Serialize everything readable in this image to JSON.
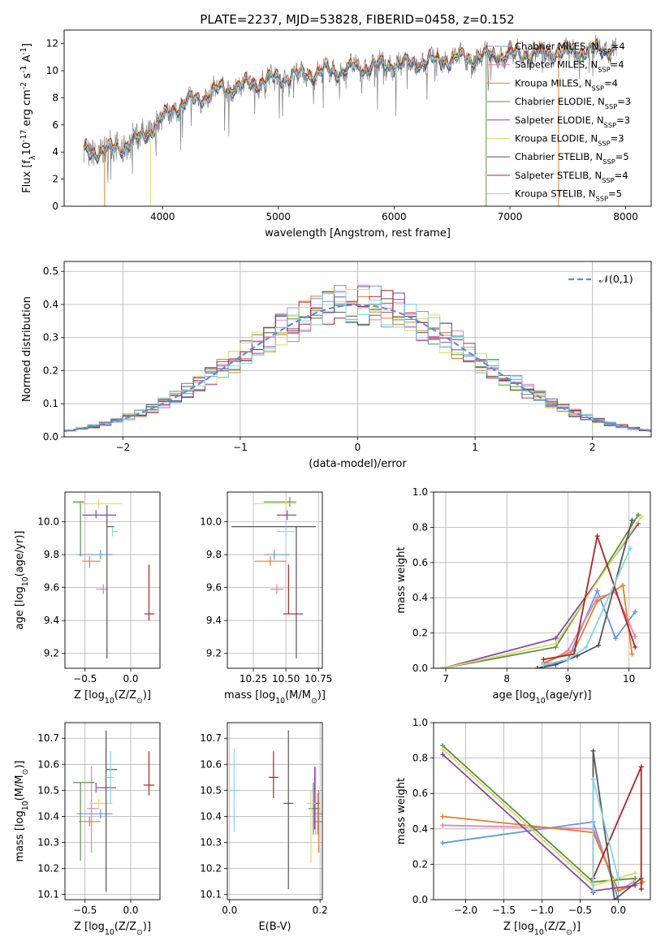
{
  "figure_title": "PLATE=2237, MJD=53828, FIBERID=0458, z=0.152",
  "series_legend": [
    {
      "label": "Chabrier MILES, N$_{SSP}$=4",
      "color": "#6495ed"
    },
    {
      "label": "Salpeter MILES, N$_{SSP}$=4",
      "color": "#e77fb3"
    },
    {
      "label": "Kroupa MILES, N$_{SSP}$=4",
      "color": "#e67e22"
    },
    {
      "label": "Chabrier ELODIE, N$_{SSP}$=3",
      "color": "#5b8f4a"
    },
    {
      "label": "Salpeter ELODIE, N$_{SSP}$=3",
      "color": "#8e44ad"
    },
    {
      "label": "Kroupa ELODIE, N$_{SSP}$=3",
      "color": "#d4e15a"
    },
    {
      "label": "Chabrier STELIB, N$_{SSP}$=5",
      "color": "#555555"
    },
    {
      "label": "Salpeter STELIB, N$_{SSP}$=4",
      "color": "#b22222"
    },
    {
      "label": "Kroupa STELIB, N$_{SSP}$=5",
      "color": "#7fd8e8"
    }
  ],
  "chart_data": [
    {
      "id": "spectrum",
      "type": "line",
      "title": "",
      "xlabel": "wavelength [Angstrom, rest frame]",
      "ylabel": "Flux [f$_\\lambda$10$^{-17}$ erg cm$^{-2}$ s$^{-1}$ A$^{-1}$]",
      "xlim": [
        3150,
        8220
      ],
      "ylim": [
        0,
        13
      ],
      "xticks": [
        4000,
        5000,
        6000,
        7000,
        8000
      ],
      "yticks": [
        0,
        2,
        4,
        6,
        8,
        10,
        12
      ],
      "grid": false,
      "legend": "top-right",
      "data_color": "#808080",
      "continuum": {
        "x": [
          3300,
          3400,
          3500,
          3600,
          3700,
          3800,
          3900,
          4000,
          4100,
          4200,
          4300,
          4400,
          4500,
          4700,
          4900,
          5100,
          5300,
          5500,
          5700,
          5900,
          6100,
          6300,
          6500,
          6700,
          6900,
          7100,
          7300,
          7500,
          7700,
          7900
        ],
        "y": [
          3.9,
          4.0,
          4.1,
          4.3,
          4.6,
          5.0,
          5.6,
          6.5,
          7.2,
          7.6,
          7.9,
          8.3,
          8.6,
          8.9,
          9.3,
          9.6,
          9.8,
          10.0,
          10.2,
          10.4,
          10.5,
          10.7,
          10.8,
          11.0,
          11.1,
          11.2,
          11.3,
          11.4,
          11.5,
          11.6
        ]
      },
      "model_offsets": [
        0.0,
        0.05,
        0.1,
        -0.05,
        -0.1,
        0.08,
        -0.12,
        0.15,
        -0.02
      ]
    },
    {
      "id": "residuals",
      "type": "histogram",
      "xlabel": "(data-model)/error",
      "ylabel": "Normed distribution",
      "xlim": [
        -2.5,
        2.5
      ],
      "ylim": [
        0,
        0.53
      ],
      "xticks": [
        -2,
        -1,
        0,
        1,
        2
      ],
      "yticks": [
        0.0,
        0.1,
        0.2,
        0.3,
        0.4,
        0.5
      ],
      "grid": true,
      "legend": "top-right",
      "gaussian_label": "$\\mathcal{N}(0,1)$",
      "gaussian_color": "#5b8fd6",
      "bin_width": 0.1,
      "bin_start": -2.5
    },
    {
      "id": "age_vs_Z",
      "type": "errorbar",
      "xlabel": "Z [log$_{10}$(Z/Z$_\\odot$)]",
      "ylabel": "age  [log$_{10}$(age/yr)]",
      "xlim": [
        -0.72,
        0.32
      ],
      "ylim": [
        9.11,
        10.18
      ],
      "xticks": [
        -0.5,
        0.0
      ],
      "yticks": [
        9.2,
        9.4,
        9.6,
        9.8,
        10.0
      ],
      "grid": true,
      "points": [
        {
          "x": -0.33,
          "xerr": [
            0.26,
            0.13
          ],
          "y": 9.8,
          "yerr": [
            0.0,
            0.0
          ]
        },
        {
          "x": -0.3,
          "xerr": [
            0.08,
            0.05
          ],
          "y": 9.59,
          "yerr": [
            0.0,
            0.0
          ]
        },
        {
          "x": -0.45,
          "xerr": [
            0.08,
            0.12
          ],
          "y": 9.76,
          "yerr": [
            0.04,
            0.03
          ]
        },
        {
          "x": -0.55,
          "xerr": [
            0.08,
            0.04
          ],
          "y": 10.12,
          "yerr": [
            0.33,
            0.0
          ]
        },
        {
          "x": -0.38,
          "xerr": [
            0.15,
            0.22
          ],
          "y": 10.04,
          "yerr": [
            0.02,
            0.03
          ]
        },
        {
          "x": -0.35,
          "xerr": [
            0.25,
            0.26
          ],
          "y": 10.11,
          "yerr": [
            0.0,
            0.0
          ]
        },
        {
          "x": -0.26,
          "xerr": [
            0.0,
            0.08
          ],
          "y": 9.97,
          "yerr": [
            0.8,
            0.13
          ]
        },
        {
          "x": 0.2,
          "xerr": [
            0.05,
            0.06
          ],
          "y": 9.44,
          "yerr": [
            0.04,
            0.3
          ]
        },
        {
          "x": -0.2,
          "xerr": [
            0.0,
            0.06
          ],
          "y": 9.94,
          "yerr": [
            0.0,
            0.0
          ]
        }
      ]
    },
    {
      "id": "age_vs_mass",
      "type": "errorbar",
      "xlabel": "mass [log$_{10}$(M/M$_\\odot$)]",
      "ylabel": "",
      "xlim": [
        10.05,
        10.78
      ],
      "ylim": [
        9.11,
        10.18
      ],
      "xticks": [
        10.25,
        10.5,
        10.75
      ],
      "yticks": [
        9.2,
        9.4,
        9.6,
        9.8,
        10.0
      ],
      "grid": true,
      "points": [
        {
          "x": 10.41,
          "xerr": [
            0.08,
            0.12
          ],
          "y": 9.8,
          "yerr": [
            0.0,
            0.0
          ]
        },
        {
          "x": 10.43,
          "xerr": [
            0.05,
            0.05
          ],
          "y": 9.59,
          "yerr": [
            0.0,
            0.0
          ]
        },
        {
          "x": 10.38,
          "xerr": [
            0.12,
            0.12
          ],
          "y": 9.76,
          "yerr": [
            0.0,
            0.0
          ]
        },
        {
          "x": 10.53,
          "xerr": [
            0.2,
            0.05
          ],
          "y": 10.12,
          "yerr": [
            0.0,
            0.0
          ]
        },
        {
          "x": 10.51,
          "xerr": [
            0.08,
            0.07
          ],
          "y": 10.04,
          "yerr": [
            0.0,
            0.0
          ]
        },
        {
          "x": 10.5,
          "xerr": [
            0.25,
            0.08
          ],
          "y": 10.11,
          "yerr": [
            0.0,
            0.0
          ]
        },
        {
          "x": 10.58,
          "xerr": [
            0.5,
            0.15
          ],
          "y": 9.97,
          "yerr": [
            0.8,
            0.0
          ]
        },
        {
          "x": 10.52,
          "xerr": [
            0.04,
            0.11
          ],
          "y": 9.44,
          "yerr": [
            0.0,
            0.3
          ]
        },
        {
          "x": 10.5,
          "xerr": [
            0.07,
            0.07
          ],
          "y": 9.94,
          "yerr": [
            0.0,
            0.0
          ]
        }
      ]
    },
    {
      "id": "massweight_vs_age",
      "type": "line",
      "xlabel": "age  [log$_{10}$(age/yr)]",
      "ylabel": "mass weight",
      "xlim": [
        6.8,
        10.35
      ],
      "ylim": [
        0,
        1.0
      ],
      "xticks": [
        7,
        8,
        9,
        10
      ],
      "yticks": [
        0.0,
        0.2,
        0.4,
        0.6,
        0.8,
        1.0
      ],
      "grid": true,
      "series": [
        {
          "x": [
            8.5,
            9.0,
            9.48,
            9.78,
            10.1
          ],
          "y": [
            0.0,
            0.05,
            0.44,
            0.17,
            0.32
          ]
        },
        {
          "x": [
            8.6,
            9.0,
            9.48,
            9.78,
            10.1
          ],
          "y": [
            0.02,
            0.1,
            0.4,
            0.43,
            0.18
          ]
        },
        {
          "x": [
            8.6,
            9.1,
            9.48,
            9.9,
            10.05
          ],
          "y": [
            0.03,
            0.1,
            0.38,
            0.47,
            0.08
          ]
        },
        {
          "x": [
            6.95,
            8.8,
            10.15
          ],
          "y": [
            0.0,
            0.12,
            0.87
          ]
        },
        {
          "x": [
            6.95,
            8.8,
            10.15
          ],
          "y": [
            0.0,
            0.17,
            0.82
          ]
        },
        {
          "x": [
            6.95,
            8.8,
            10.2
          ],
          "y": [
            0.0,
            0.14,
            0.86
          ]
        },
        {
          "x": [
            8.5,
            8.8,
            9.15,
            9.5,
            10.05
          ],
          "y": [
            0.0,
            0.02,
            0.07,
            0.13,
            0.84
          ]
        },
        {
          "x": [
            8.6,
            9.1,
            9.48,
            10.1
          ],
          "y": [
            0.05,
            0.08,
            0.75,
            0.12
          ]
        },
        {
          "x": [
            8.6,
            9.0,
            9.3,
            10.02
          ],
          "y": [
            0.02,
            0.05,
            0.12,
            0.68
          ]
        }
      ]
    },
    {
      "id": "mass_vs_Z",
      "type": "errorbar",
      "xlabel": "Z [log$_{10}$(Z/Z$_\\odot$)]",
      "ylabel": "mass [log$_{10}$(M/M$_\\odot$)]",
      "xlim": [
        -0.72,
        0.32
      ],
      "ylim": [
        10.08,
        10.76
      ],
      "xticks": [
        -0.5,
        0.0
      ],
      "yticks": [
        10.1,
        10.2,
        10.3,
        10.4,
        10.5,
        10.6,
        10.7
      ],
      "grid": true,
      "points": [
        {
          "x": -0.33,
          "xerr": [
            0.26,
            0.13
          ],
          "y": 10.41,
          "yerr": [
            0.0,
            0.0
          ]
        },
        {
          "x": -0.43,
          "xerr": [
            0.05,
            0.08
          ],
          "y": 10.43,
          "yerr": [
            0.17,
            0.16
          ]
        },
        {
          "x": -0.45,
          "xerr": [
            0.12,
            0.12
          ],
          "y": 10.38,
          "yerr": [
            0.0,
            0.0
          ]
        },
        {
          "x": -0.55,
          "xerr": [
            0.08,
            0.15
          ],
          "y": 10.53,
          "yerr": [
            0.3,
            0.0
          ]
        },
        {
          "x": -0.38,
          "xerr": [
            0.0,
            0.22
          ],
          "y": 10.51,
          "yerr": [
            0.0,
            0.0
          ]
        },
        {
          "x": -0.35,
          "xerr": [
            0.1,
            0.15
          ],
          "y": 10.45,
          "yerr": [
            0.0,
            0.0
          ]
        },
        {
          "x": -0.27,
          "xerr": [
            0.0,
            0.12
          ],
          "y": 10.58,
          "yerr": [
            0.47,
            0.15
          ]
        },
        {
          "x": 0.2,
          "xerr": [
            0.06,
            0.06
          ],
          "y": 10.52,
          "yerr": [
            0.04,
            0.13
          ]
        },
        {
          "x": -0.22,
          "xerr": [
            0.05,
            0.03
          ],
          "y": 10.55,
          "yerr": [
            0.1,
            0.1
          ]
        }
      ]
    },
    {
      "id": "mass_vs_EBV",
      "type": "errorbar",
      "xlabel": "E(B-V)",
      "ylabel": "",
      "xlim": [
        -0.005,
        0.205
      ],
      "ylim": [
        10.08,
        10.76
      ],
      "xticks": [
        0.0,
        0.2
      ],
      "yticks": [
        10.1,
        10.2,
        10.3,
        10.4,
        10.5,
        10.6,
        10.7
      ],
      "grid": true,
      "points": [
        {
          "x": 0.195,
          "y": 10.41,
          "yerr": [
            0.08,
            0.08
          ]
        },
        {
          "x": 0.19,
          "y": 10.43,
          "yerr": [
            0.1,
            0.16
          ]
        },
        {
          "x": 0.197,
          "y": 10.38,
          "yerr": [
            0.12,
            0.12
          ]
        },
        {
          "x": 0.185,
          "y": 10.43,
          "yerr": [
            0.1,
            0.1
          ]
        },
        {
          "x": 0.188,
          "y": 10.45,
          "yerr": [
            0.1,
            0.14
          ]
        },
        {
          "x": 0.18,
          "y": 10.45,
          "yerr": [
            0.23,
            0.05
          ]
        },
        {
          "x": 0.13,
          "y": 10.45,
          "yerr": [
            0.33,
            0.28
          ]
        },
        {
          "x": 0.097,
          "y": 10.55,
          "yerr": [
            0.08,
            0.1
          ]
        },
        {
          "x": 0.01,
          "y": 10.5,
          "yerr": [
            0.16,
            0.16
          ]
        }
      ]
    },
    {
      "id": "massweight_vs_Z",
      "type": "line",
      "xlabel": "Z [log$_{10}$(Z/Z$_\\odot$)]",
      "ylabel": "mass weight",
      "xlim": [
        -2.42,
        0.42
      ],
      "ylim": [
        0,
        1.0
      ],
      "xticks": [
        -2.0,
        -1.5,
        -1.0,
        -0.5,
        0.0
      ],
      "yticks": [
        0.0,
        0.2,
        0.4,
        0.6,
        0.8,
        1.0
      ],
      "grid": true,
      "series": [
        {
          "x": [
            -2.3,
            -0.33,
            0.0
          ],
          "y": [
            0.32,
            0.44,
            0.0
          ]
        },
        {
          "x": [
            -2.3,
            -0.33,
            0.0,
            0.2
          ],
          "y": [
            0.42,
            0.4,
            0.05,
            0.1
          ]
        },
        {
          "x": [
            -2.3,
            -0.33,
            0.0,
            0.32
          ],
          "y": [
            0.47,
            0.38,
            0.05,
            0.1
          ]
        },
        {
          "x": [
            -2.3,
            -0.33,
            0.22
          ],
          "y": [
            0.87,
            0.1,
            0.12
          ]
        },
        {
          "x": [
            -2.3,
            -0.33,
            0.22
          ],
          "y": [
            0.82,
            0.05,
            0.08
          ]
        },
        {
          "x": [
            -2.3,
            -0.33,
            0.22
          ],
          "y": [
            0.85,
            0.08,
            0.15
          ]
        },
        {
          "x": [
            -0.33,
            -0.33,
            -0.05,
            0.3
          ],
          "y": [
            0.04,
            0.84,
            0.0,
            0.12
          ]
        },
        {
          "x": [
            -0.33,
            0.3,
            0.3
          ],
          "y": [
            0.12,
            0.75,
            0.06
          ]
        },
        {
          "x": [
            -0.33,
            -0.33,
            0.0
          ],
          "y": [
            0.05,
            0.68,
            0.12
          ]
        }
      ]
    }
  ]
}
